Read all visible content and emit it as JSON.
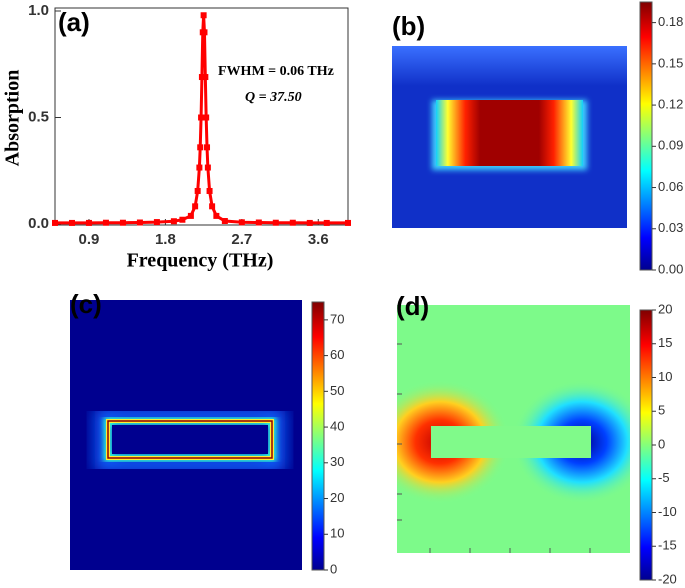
{
  "chart_data": [
    {
      "type": "line",
      "title": "(a)",
      "x_label": "Frequency (THz)",
      "y_label": "Absorption",
      "annotations": [
        "FWHM = 0.06 THz",
        "Q = 37.50"
      ],
      "xlim": [
        0.5,
        3.95
      ],
      "ylim": [
        0,
        1
      ],
      "xticks": [
        0.9,
        1.8,
        2.7,
        3.6
      ],
      "yticks": [
        {
          "value": 0,
          "label": "0.0"
        },
        {
          "value": 0.5,
          "label": "0.5"
        },
        {
          "value": 1,
          "label": "1.0"
        }
      ],
      "series": [
        {
          "color": "#ff0000",
          "x": [
            0.5,
            0.7,
            0.9,
            1.1,
            1.3,
            1.5,
            1.7,
            1.9,
            2.0,
            2.1,
            2.15,
            2.18,
            2.2,
            2.21,
            2.22,
            2.23,
            2.24,
            2.25,
            2.26,
            2.27,
            2.28,
            2.29,
            2.3,
            2.32,
            2.35,
            2.4,
            2.5,
            2.7,
            2.9,
            3.1,
            3.3,
            3.5,
            3.7,
            3.95
          ],
          "values": [
            0.005,
            0.005,
            0.005,
            0.006,
            0.006,
            0.007,
            0.009,
            0.013,
            0.02,
            0.038,
            0.083,
            0.155,
            0.265,
            0.36,
            0.5,
            0.69,
            0.9,
            0.98,
            0.9,
            0.69,
            0.5,
            0.36,
            0.265,
            0.155,
            0.083,
            0.038,
            0.014,
            0.008,
            0.007,
            0.006,
            0.006,
            0.005,
            0.005,
            0.005
          ]
        }
      ]
    },
    {
      "type": "heatmap",
      "title": "(b)",
      "zlim": [
        0,
        0.195
      ],
      "zticks": [
        {
          "value": 0,
          "label": "0.00"
        },
        {
          "value": 0.03,
          "label": "0.03"
        },
        {
          "value": 0.06,
          "label": "0.06"
        },
        {
          "value": 0.09,
          "label": "0.09"
        },
        {
          "value": 0.12,
          "label": "0.12"
        },
        {
          "value": 0.15,
          "label": "0.15"
        },
        {
          "value": 0.18,
          "label": "0.18"
        }
      ]
    },
    {
      "type": "heatmap",
      "title": "(c)",
      "zlim": [
        0,
        75
      ],
      "zticks": [
        0,
        10,
        20,
        30,
        40,
        50,
        60,
        70
      ]
    },
    {
      "type": "heatmap",
      "title": "(d)",
      "zlim": [
        -20,
        20
      ],
      "zticks": [
        -20,
        -15,
        -10,
        -5,
        0,
        5,
        10,
        15,
        20
      ]
    }
  ]
}
